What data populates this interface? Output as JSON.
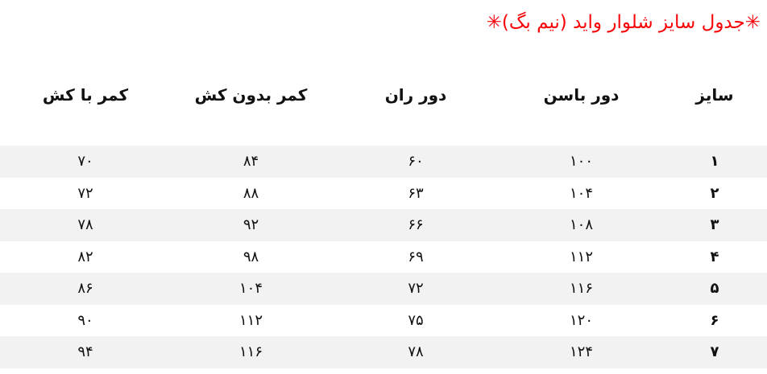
{
  "title": {
    "text": "✳جدول سایز شلوار واید (نیم بگ)✳",
    "color": "#f70409"
  },
  "table": {
    "stripe_color": "#f2f2f2",
    "headers": [
      "سایز",
      "دور باسن",
      "دور ران",
      "کمر بدون کش",
      "کمر با کش"
    ],
    "rows": [
      {
        "size": "۱",
        "hip": "۱۰۰",
        "thigh": "۶۰",
        "waist_no_elastic": "۸۴",
        "waist_elastic": "۷۰"
      },
      {
        "size": "۲",
        "hip": "۱۰۴",
        "thigh": "۶۳",
        "waist_no_elastic": "۸۸",
        "waist_elastic": "۷۲"
      },
      {
        "size": "۳",
        "hip": "۱۰۸",
        "thigh": "۶۶",
        "waist_no_elastic": "۹۲",
        "waist_elastic": "۷۸"
      },
      {
        "size": "۴",
        "hip": "۱۱۲",
        "thigh": "۶۹",
        "waist_no_elastic": "۹۸",
        "waist_elastic": "۸۲"
      },
      {
        "size": "۵",
        "hip": "۱۱۶",
        "thigh": "۷۲",
        "waist_no_elastic": "۱۰۴",
        "waist_elastic": "۸۶"
      },
      {
        "size": "۶",
        "hip": "۱۲۰",
        "thigh": "۷۵",
        "waist_no_elastic": "۱۱۲",
        "waist_elastic": "۹۰"
      },
      {
        "size": "۷",
        "hip": "۱۲۴",
        "thigh": "۷۸",
        "waist_no_elastic": "۱۱۶",
        "waist_elastic": "۹۴"
      }
    ]
  },
  "chart_data": {
    "type": "table",
    "title": "✳جدول سایز شلوار واید (نیم بگ)✳",
    "columns": [
      "سایز",
      "دور باسن",
      "دور ران",
      "کمر بدون کش",
      "کمر با کش"
    ],
    "rows": [
      [
        1,
        100,
        60,
        84,
        70
      ],
      [
        2,
        104,
        63,
        88,
        72
      ],
      [
        3,
        108,
        66,
        92,
        78
      ],
      [
        4,
        112,
        69,
        98,
        82
      ],
      [
        5,
        116,
        72,
        104,
        86
      ],
      [
        6,
        120,
        75,
        112,
        90
      ],
      [
        7,
        124,
        78,
        116,
        94
      ]
    ],
    "layout_hints": {
      "direction": "rtl",
      "zebra_striped_rows": [
        1,
        3,
        5,
        7
      ],
      "title_color": "#f70409",
      "grid": false
    }
  }
}
